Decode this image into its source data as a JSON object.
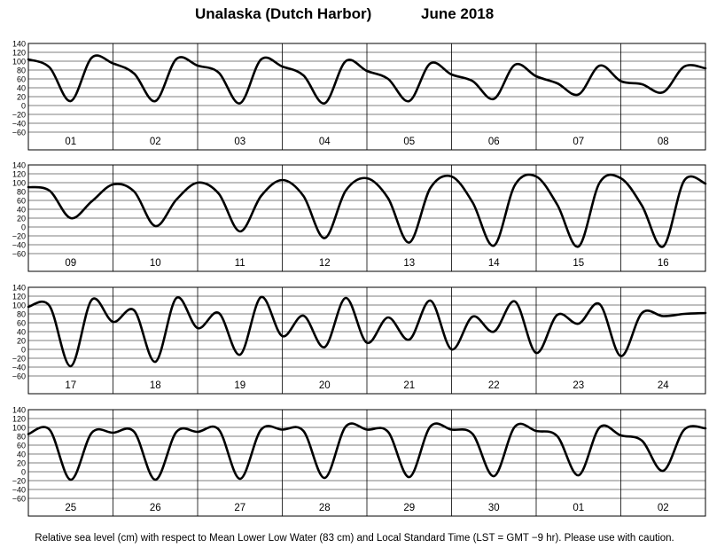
{
  "header": {
    "location": "Unalaska (Dutch Harbor)",
    "month_year": "June   2018"
  },
  "footnote": "Relative sea level (cm) with respect to Mean Lower Low Water (83 cm) and Local Standard Time (LST = GMT −9 hr). Please use with caution.",
  "chart_data": [
    {
      "type": "line",
      "title": "",
      "xlabel": "",
      "ylabel": "",
      "ylim": [
        -60,
        140
      ],
      "yticks": [
        "140",
        "120",
        "100",
        "80",
        "60",
        "40",
        "20",
        "0",
        "−20",
        "−40",
        "−60"
      ],
      "grid": true,
      "days": [
        "01",
        "02",
        "03",
        "04",
        "05",
        "06",
        "07",
        "08"
      ],
      "x_hours": [
        0,
        6,
        12,
        18,
        24,
        30,
        36,
        42,
        48,
        54,
        60,
        66,
        72,
        78,
        84,
        90,
        96,
        102,
        108,
        114,
        120,
        126,
        132,
        138,
        144,
        150,
        156,
        162,
        168,
        174,
        180,
        186,
        192
      ],
      "series": [
        {
          "values": [
            104,
            86,
            10,
            108,
            95,
            72,
            10,
            105,
            90,
            74,
            5,
            104,
            88,
            68,
            5,
            100,
            78,
            60,
            10,
            95,
            70,
            55,
            15,
            92,
            66,
            50,
            25,
            90,
            55,
            48,
            30,
            88,
            84
          ]
        }
      ]
    },
    {
      "type": "line",
      "title": "",
      "xlabel": "",
      "ylabel": "",
      "ylim": [
        -60,
        140
      ],
      "yticks": [
        "140",
        "120",
        "100",
        "80",
        "60",
        "40",
        "20",
        "0",
        "−20",
        "−40",
        "−60"
      ],
      "grid": true,
      "days": [
        "09",
        "10",
        "11",
        "12",
        "13",
        "14",
        "15",
        "16"
      ],
      "x_hours": [
        0,
        6,
        12,
        18,
        24,
        30,
        36,
        42,
        48,
        54,
        60,
        66,
        72,
        78,
        84,
        90,
        96,
        102,
        108,
        114,
        120,
        126,
        132,
        138,
        144,
        150,
        156,
        162,
        168,
        174,
        180,
        186,
        192
      ],
      "series": [
        {
          "values": [
            90,
            82,
            20,
            58,
            96,
            80,
            2,
            62,
            100,
            75,
            -10,
            70,
            106,
            70,
            -25,
            82,
            110,
            65,
            -35,
            88,
            114,
            55,
            -42,
            95,
            114,
            50,
            -44,
            100,
            110,
            48,
            -44,
            105,
            98
          ]
        }
      ]
    },
    {
      "type": "line",
      "title": "",
      "xlabel": "",
      "ylabel": "",
      "ylim": [
        -60,
        140
      ],
      "yticks": [
        "140",
        "120",
        "100",
        "80",
        "60",
        "40",
        "20",
        "0",
        "−20",
        "−40",
        "−60"
      ],
      "grid": true,
      "days": [
        "17",
        "18",
        "19",
        "20",
        "21",
        "22",
        "23",
        "24"
      ],
      "x_hours": [
        0,
        6,
        12,
        18,
        24,
        30,
        36,
        42,
        48,
        54,
        60,
        66,
        72,
        78,
        84,
        90,
        96,
        102,
        108,
        114,
        120,
        126,
        132,
        138,
        144,
        150,
        156,
        162,
        168,
        174,
        180,
        186,
        192
      ],
      "series": [
        {
          "values": [
            96,
            98,
            -38,
            112,
            62,
            88,
            -28,
            116,
            48,
            82,
            -12,
            118,
            30,
            76,
            5,
            116,
            15,
            72,
            22,
            110,
            0,
            74,
            40,
            108,
            -8,
            78,
            58,
            102,
            -15,
            82,
            75,
            80,
            82
          ]
        }
      ]
    },
    {
      "type": "line",
      "title": "",
      "xlabel": "",
      "ylabel": "",
      "ylim": [
        -60,
        140
      ],
      "yticks": [
        "140",
        "120",
        "100",
        "80",
        "60",
        "40",
        "20",
        "0",
        "−20",
        "−40",
        "−60"
      ],
      "grid": true,
      "days": [
        "25",
        "26",
        "27",
        "28",
        "29",
        "30",
        "01",
        "02"
      ],
      "x_hours": [
        0,
        6,
        12,
        18,
        24,
        30,
        36,
        42,
        48,
        54,
        60,
        66,
        72,
        78,
        84,
        90,
        96,
        102,
        108,
        114,
        120,
        126,
        132,
        138,
        144,
        150,
        156,
        162,
        168,
        174,
        180,
        186,
        192
      ],
      "series": [
        {
          "values": [
            85,
            95,
            -18,
            88,
            88,
            90,
            -18,
            90,
            90,
            95,
            -16,
            95,
            95,
            92,
            -14,
            102,
            95,
            90,
            -12,
            102,
            95,
            85,
            -10,
            102,
            92,
            80,
            -8,
            100,
            82,
            70,
            2,
            95,
            98
          ]
        }
      ]
    }
  ]
}
